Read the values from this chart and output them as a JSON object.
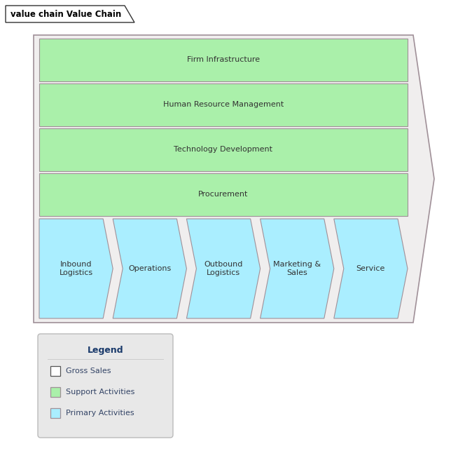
{
  "title": "value chain Value Chain",
  "bg_color": "#ffffff",
  "support_color": "#aaf0aa",
  "support_border": "#a09098",
  "primary_color": "#aaeeff",
  "primary_border": "#a09098",
  "outer_border": "#a09098",
  "white_color": "#ffffff",
  "legend_bg": "#e8e8e8",
  "legend_title_color": "#1a3a6b",
  "legend_text_color": "#334466",
  "support_activities": [
    "Firm Infrastructure",
    "Human Resource Management",
    "Technology Development",
    "Procurement"
  ],
  "primary_activities": [
    "Inbound\nLogistics",
    "Operations",
    "Outbound\nLogistics",
    "Marketing &\nSales",
    "Service"
  ],
  "title_font_size": 8.5,
  "label_font_size": 8,
  "legend_title_font_size": 9,
  "legend_label_font_size": 8
}
